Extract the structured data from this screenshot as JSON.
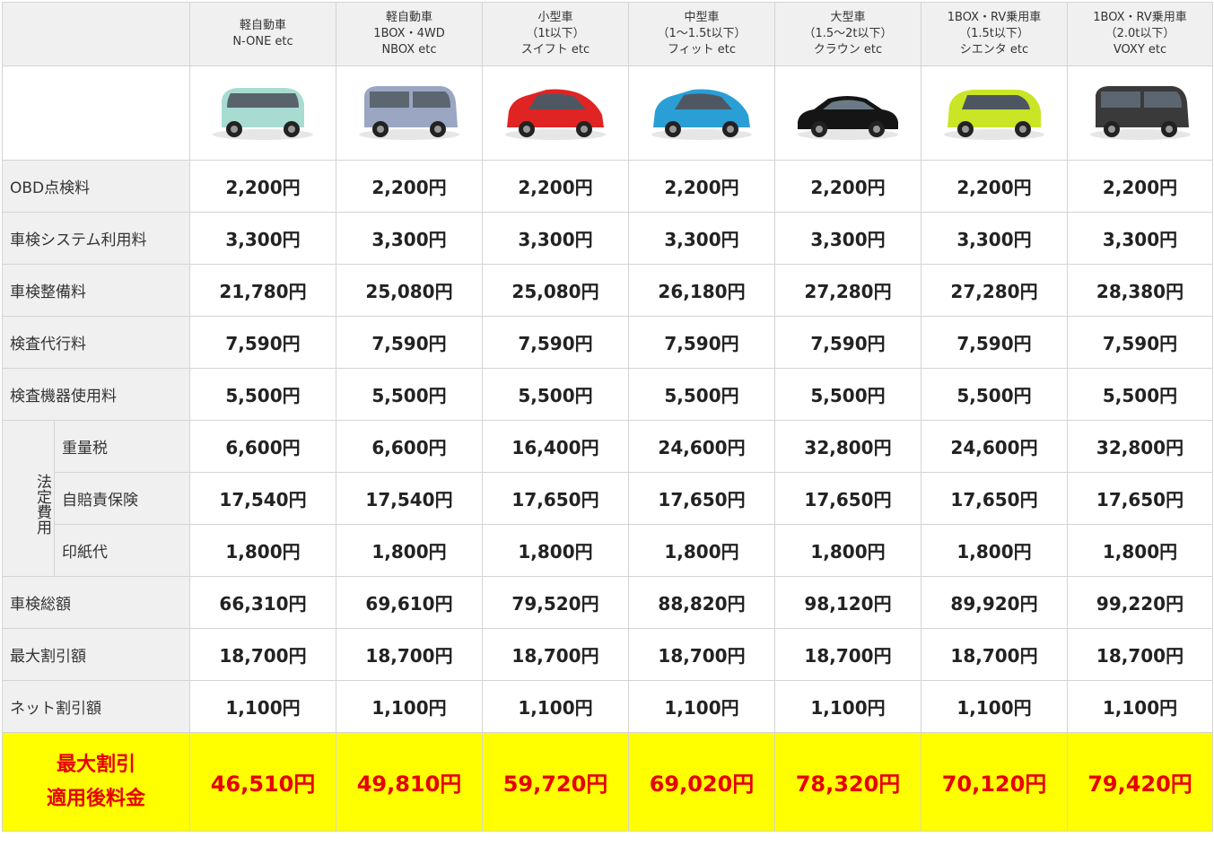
{
  "columns": [
    {
      "lines": [
        "軽自動車",
        "N-ONE etc"
      ],
      "car_color": "#a8dcd2",
      "car_shape": "kei"
    },
    {
      "lines": [
        "軽自動車",
        "1BOX・4WD",
        "NBOX etc"
      ],
      "car_color": "#9aa6c2",
      "car_shape": "box"
    },
    {
      "lines": [
        "小型車",
        "（1t以下）",
        "スイフト etc"
      ],
      "car_color": "#e02323",
      "car_shape": "hatch"
    },
    {
      "lines": [
        "中型車",
        "（1～1.5t以下）",
        "フィット etc"
      ],
      "car_color": "#2a9fd6",
      "car_shape": "hatch"
    },
    {
      "lines": [
        "大型車",
        "（1.5～2t以下）",
        "クラウン etc"
      ],
      "car_color": "#151515",
      "car_shape": "sedan"
    },
    {
      "lines": [
        "1BOX・RV乗用車",
        "（1.5t以下）",
        "シエンタ etc"
      ],
      "car_color": "#c9e526",
      "car_shape": "mini"
    },
    {
      "lines": [
        "1BOX・RV乗用車",
        "（2.0t以下）",
        "VOXY etc"
      ],
      "car_color": "#3a3a3a",
      "car_shape": "van"
    }
  ],
  "rows": [
    {
      "label": "OBD点検料",
      "values": [
        "2,200円",
        "2,200円",
        "2,200円",
        "2,200円",
        "2,200円",
        "2,200円",
        "2,200円"
      ]
    },
    {
      "label": "車検システム利用料",
      "values": [
        "3,300円",
        "3,300円",
        "3,300円",
        "3,300円",
        "3,300円",
        "3,300円",
        "3,300円"
      ]
    },
    {
      "label": "車検整備料",
      "values": [
        "21,780円",
        "25,080円",
        "25,080円",
        "26,180円",
        "27,280円",
        "27,280円",
        "28,380円"
      ]
    },
    {
      "label": "検査代行料",
      "values": [
        "7,590円",
        "7,590円",
        "7,590円",
        "7,590円",
        "7,590円",
        "7,590円",
        "7,590円"
      ]
    },
    {
      "label": "検査機器使用料",
      "values": [
        "5,500円",
        "5,500円",
        "5,500円",
        "5,500円",
        "5,500円",
        "5,500円",
        "5,500円"
      ]
    }
  ],
  "legal_group_label": "法定費用",
  "legal_rows": [
    {
      "label": "重量税",
      "values": [
        "6,600円",
        "6,600円",
        "16,400円",
        "24,600円",
        "32,800円",
        "24,600円",
        "32,800円"
      ]
    },
    {
      "label": "自賠責保険",
      "values": [
        "17,540円",
        "17,540円",
        "17,650円",
        "17,650円",
        "17,650円",
        "17,650円",
        "17,650円"
      ]
    },
    {
      "label": "印紙代",
      "values": [
        "1,800円",
        "1,800円",
        "1,800円",
        "1,800円",
        "1,800円",
        "1,800円",
        "1,800円"
      ]
    }
  ],
  "bottom_rows": [
    {
      "label": "車検総額",
      "values": [
        "66,310円",
        "69,610円",
        "79,520円",
        "88,820円",
        "98,120円",
        "89,920円",
        "99,220円"
      ]
    },
    {
      "label": "最大割引額",
      "values": [
        "18,700円",
        "18,700円",
        "18,700円",
        "18,700円",
        "18,700円",
        "18,700円",
        "18,700円"
      ]
    },
    {
      "label": "ネット割引額",
      "values": [
        "1,100円",
        "1,100円",
        "1,100円",
        "1,100円",
        "1,100円",
        "1,100円",
        "1,100円"
      ]
    }
  ],
  "total": {
    "label_lines": [
      "最大割引",
      "適用後料金"
    ],
    "values": [
      "46,510円",
      "49,810円",
      "59,720円",
      "69,020円",
      "78,320円",
      "70,120円",
      "79,420円"
    ],
    "highlight_color": "#ffff00",
    "text_color": "#e60000"
  }
}
